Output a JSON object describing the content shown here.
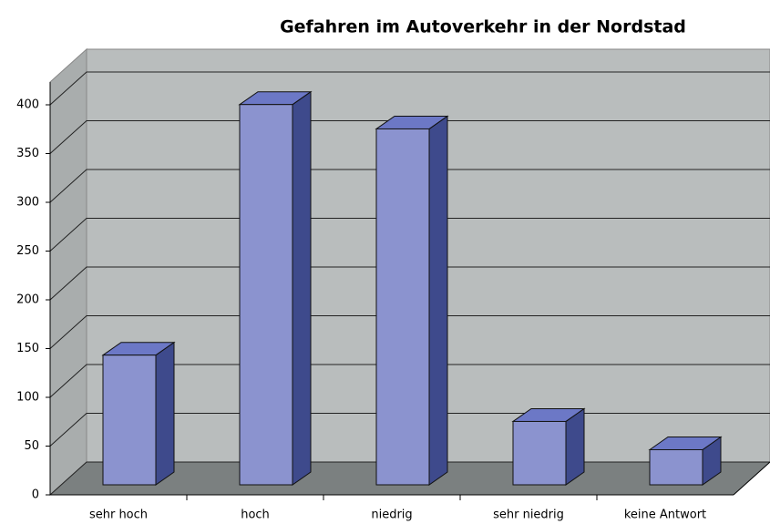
{
  "chart_data": {
    "type": "bar3d",
    "title": "Gefahren im Autoverkehr in der Nordstad",
    "categories": [
      "sehr hoch",
      "hoch",
      "niedrig",
      "sehr niedrig",
      "keine Antwort"
    ],
    "values": [
      133,
      390,
      365,
      65,
      36
    ],
    "color": "#8b93cf",
    "ylim": [
      0,
      400
    ],
    "yticks": [
      0,
      50,
      100,
      150,
      200,
      250,
      300,
      350,
      400
    ],
    "grid": true
  }
}
